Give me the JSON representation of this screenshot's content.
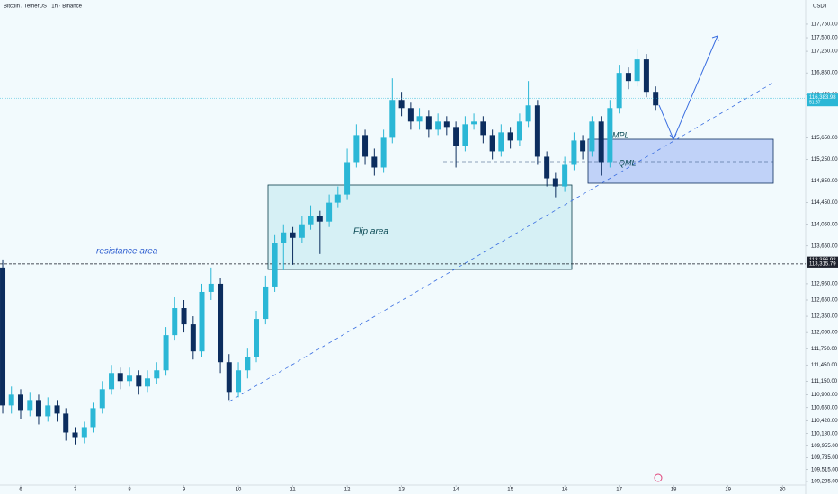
{
  "chart_data": {
    "type": "candlestick",
    "title": "Bitcoin / TetherUS · 1h · Binance",
    "currency": "USDT",
    "up_color": "#2bb7d6",
    "down_color": "#0c2d5e",
    "x": [
      5.67,
      5.83,
      6,
      6.17,
      6.33,
      6.5,
      6.67,
      6.83,
      7,
      7.17,
      7.33,
      7.5,
      7.67,
      7.83,
      8,
      8.17,
      8.33,
      8.5,
      8.67,
      8.83,
      9,
      9.17,
      9.33,
      9.5,
      9.67,
      9.83,
      10,
      10.17,
      10.33,
      10.5,
      10.67,
      10.83,
      11,
      11.17,
      11.33,
      11.5,
      11.67,
      11.83,
      12,
      12.17,
      12.33,
      12.5,
      12.67,
      12.83,
      13,
      13.17,
      13.33,
      13.5,
      13.67,
      13.83,
      14,
      14.17,
      14.33,
      14.5,
      14.67,
      14.83,
      15,
      15.17,
      15.33,
      15.5,
      15.67,
      15.83,
      16,
      16.17,
      16.33,
      16.5,
      16.67,
      16.83,
      17,
      17.17,
      17.33,
      17.5,
      17.67
    ],
    "open": [
      113250,
      110700,
      110900,
      110600,
      110800,
      110500,
      110700,
      110550,
      110200,
      110100,
      110300,
      110650,
      111000,
      111300,
      111150,
      111250,
      111050,
      111200,
      111350,
      112000,
      112500,
      112200,
      111700,
      112800,
      112950,
      111500,
      110950,
      111350,
      111600,
      112300,
      112900,
      113700,
      113900,
      113800,
      114050,
      114200,
      114100,
      114450,
      114600,
      115200,
      115700,
      115300,
      115100,
      115650,
      116350,
      116200,
      115950,
      116050,
      115800,
      115950,
      115850,
      115500,
      115900,
      115950,
      115700,
      115400,
      115750,
      115600,
      115950,
      116250,
      115300,
      114900,
      114750,
      115150,
      115600,
      115400,
      115950,
      115200,
      116200,
      116850,
      116700,
      117100,
      116500
    ],
    "high": [
      113400,
      111050,
      111000,
      110950,
      110900,
      110850,
      110800,
      110650,
      110300,
      110400,
      110750,
      111150,
      111450,
      111400,
      111400,
      111350,
      111350,
      111500,
      112150,
      112700,
      112650,
      112350,
      112950,
      113250,
      113050,
      111650,
      111500,
      111750,
      112450,
      113100,
      113850,
      114050,
      114000,
      114200,
      114400,
      114300,
      114600,
      114750,
      115450,
      115900,
      115800,
      115450,
      115800,
      116750,
      116500,
      116300,
      116200,
      116150,
      116100,
      116050,
      115950,
      116050,
      116100,
      116050,
      115800,
      115900,
      115850,
      116100,
      116700,
      116350,
      115400,
      115000,
      115300,
      115750,
      115700,
      116050,
      116050,
      116350,
      117000,
      116950,
      117300,
      117200,
      116600
    ],
    "low": [
      110550,
      110550,
      110450,
      110500,
      110350,
      110400,
      110400,
      110050,
      109980,
      110000,
      110200,
      110550,
      110900,
      111000,
      111050,
      110900,
      110950,
      111100,
      111250,
      111900,
      112050,
      111550,
      111600,
      112650,
      111300,
      110800,
      110850,
      111200,
      111500,
      112200,
      112800,
      113200,
      113300,
      113700,
      113950,
      113500,
      114000,
      114350,
      114500,
      115100,
      115150,
      114950,
      115000,
      115550,
      116050,
      115800,
      115800,
      115650,
      115700,
      115700,
      115100,
      115400,
      115800,
      115550,
      115250,
      115300,
      115450,
      115500,
      115850,
      115150,
      114750,
      114550,
      114650,
      115050,
      115250,
      115300,
      114950,
      115100,
      116100,
      116550,
      116600,
      116400,
      116150
    ],
    "close": [
      110700,
      110900,
      110600,
      110800,
      110500,
      110700,
      110550,
      110200,
      110100,
      110300,
      110650,
      111000,
      111300,
      111150,
      111250,
      111050,
      111200,
      111350,
      112000,
      112500,
      112200,
      111700,
      112800,
      112950,
      111500,
      110950,
      111350,
      111600,
      112300,
      112900,
      113700,
      113900,
      113800,
      114050,
      114200,
      114100,
      114450,
      114600,
      115200,
      115700,
      115300,
      115100,
      115650,
      116350,
      116200,
      115950,
      116050,
      115800,
      115950,
      115850,
      115500,
      115900,
      115950,
      115700,
      115400,
      115750,
      115600,
      115950,
      116250,
      115300,
      114900,
      114750,
      115150,
      115600,
      115400,
      115950,
      115200,
      116200,
      116850,
      116700,
      117100,
      116500,
      116250
    ],
    "xlim": [
      5.62,
      20.41
    ],
    "ylim": [
      109228,
      118198
    ],
    "xticks": [
      6,
      7,
      8,
      9,
      10,
      11,
      12,
      13,
      14,
      15,
      16,
      17,
      18,
      19,
      20
    ],
    "yticks": [
      {
        "value": 117750,
        "label": "117,750.00"
      },
      {
        "value": 117500,
        "label": "117,500.00"
      },
      {
        "value": 117250,
        "label": "117,250.00"
      },
      {
        "value": 116850,
        "label": "116,850.00"
      },
      {
        "value": 116450,
        "label": "116,450.00"
      },
      {
        "value": 115650,
        "label": "115,650.00"
      },
      {
        "value": 115250,
        "label": "115,250.00"
      },
      {
        "value": 114850,
        "label": "114,850.00"
      },
      {
        "value": 114450,
        "label": "114,450.00"
      },
      {
        "value": 114050,
        "label": "114,050.00"
      },
      {
        "value": 113650,
        "label": "113,650.00"
      },
      {
        "value": 112950,
        "label": "112,950.00"
      },
      {
        "value": 112650,
        "label": "112,650.00"
      },
      {
        "value": 112350,
        "label": "112,350.00"
      },
      {
        "value": 112050,
        "label": "112,050.00"
      },
      {
        "value": 111750,
        "label": "111,750.00"
      },
      {
        "value": 111450,
        "label": "111,450.00"
      },
      {
        "value": 111150,
        "label": "111,150.00"
      },
      {
        "value": 110900,
        "label": "110,900.00"
      },
      {
        "value": 110660,
        "label": "110,660.00"
      },
      {
        "value": 110420,
        "label": "110,420.00"
      },
      {
        "value": 110180,
        "label": "110,180.00"
      },
      {
        "value": 109955,
        "label": "109,955.00"
      },
      {
        "value": 109735,
        "label": "109,735.00"
      },
      {
        "value": 109515,
        "label": "109,515.00"
      },
      {
        "value": 109295,
        "label": "109,295.00"
      }
    ],
    "levels": [
      {
        "value": 113386.92,
        "label": "113,386.92"
      },
      {
        "value": 113315.79,
        "label": "113,315.79"
      }
    ],
    "last_price": {
      "value": 116383.98,
      "label": "116,383.98"
    },
    "countdown": "51:57",
    "annotations": [
      "resistance area",
      "Flip area",
      "MPL",
      "QML"
    ]
  }
}
